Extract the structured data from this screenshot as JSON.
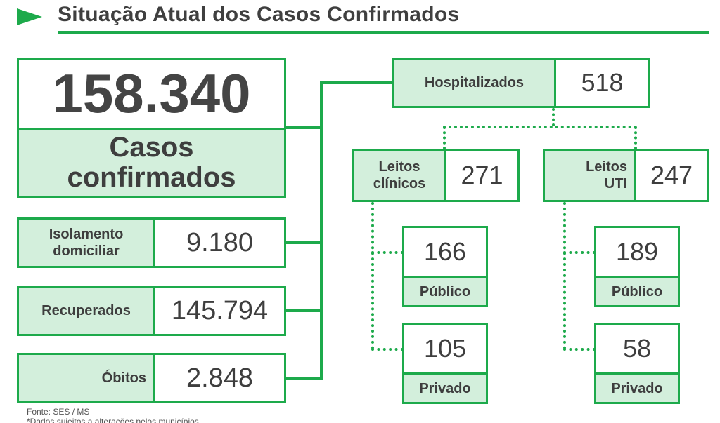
{
  "title": "Situação Atual dos Casos Confirmados",
  "main": {
    "value": "158.340",
    "label_line1": "Casos",
    "label_line2": "confirmados"
  },
  "isolamento": {
    "label_line1": "Isolamento",
    "label_line2": "domiciliar",
    "value": "9.180"
  },
  "recuperados": {
    "label": "Recuperados",
    "value": "145.794"
  },
  "obitos": {
    "label": "Óbitos",
    "value": "2.848"
  },
  "hospitalizados": {
    "label": "Hospitalizados",
    "value": "518"
  },
  "leitos_clinicos": {
    "label_line1": "Leitos",
    "label_line2": "clínicos",
    "value": "271",
    "publico": {
      "value": "166",
      "label": "Público"
    },
    "privado": {
      "value": "105",
      "label": "Privado"
    }
  },
  "leitos_uti": {
    "label_line1": "Leitos",
    "label_line2": "UTI",
    "value": "247",
    "publico": {
      "value": "189",
      "label": "Público"
    },
    "privado": {
      "value": "58",
      "label": "Privado"
    }
  },
  "footer": {
    "source": "Fonte: SES / MS",
    "note": "*Dados sujeitos a alterações pelos municípios"
  },
  "colors": {
    "accent": "#1daa4b",
    "label_fill": "#d3efdc",
    "text": "#3e3e3e"
  }
}
